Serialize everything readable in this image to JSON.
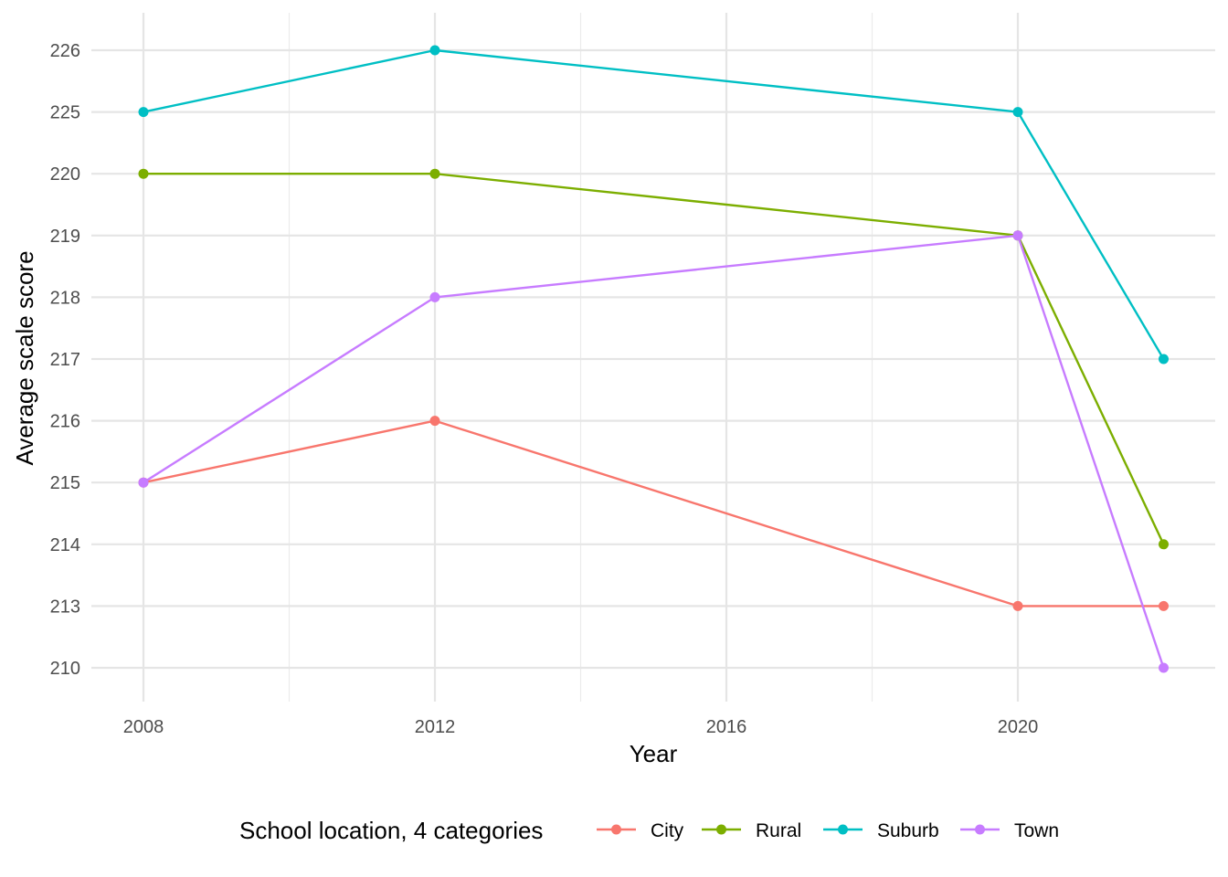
{
  "chart_data": {
    "type": "line",
    "xlabel": "Year",
    "ylabel": "Average scale score",
    "x": [
      2008,
      2012,
      2020,
      2022
    ],
    "x_ticks": [
      "2008",
      "2012",
      "2016",
      "2020"
    ],
    "x_tick_values": [
      2008,
      2012,
      2016,
      2020
    ],
    "xlim": [
      2007.3,
      2022.7
    ],
    "y_ticks": [
      "210",
      "213",
      "214",
      "215",
      "216",
      "217",
      "218",
      "219",
      "220",
      "225",
      "226"
    ],
    "y_tick_values": [
      210,
      213,
      214,
      215,
      216,
      217,
      218,
      219,
      220,
      225,
      226
    ],
    "y_scale": "discrete",
    "grid": true,
    "legend": {
      "title": "School location, 4 categories",
      "position": "bottom"
    },
    "series": [
      {
        "name": "City",
        "color": "#F8766D",
        "values": [
          215,
          216,
          213,
          213
        ]
      },
      {
        "name": "Rural",
        "color": "#7CAE00",
        "values": [
          220,
          220,
          219,
          214
        ]
      },
      {
        "name": "Suburb",
        "color": "#00BFC4",
        "values": [
          225,
          226,
          225,
          217
        ]
      },
      {
        "name": "Town",
        "color": "#C77CFF",
        "values": [
          215,
          218,
          219,
          210
        ]
      }
    ]
  }
}
